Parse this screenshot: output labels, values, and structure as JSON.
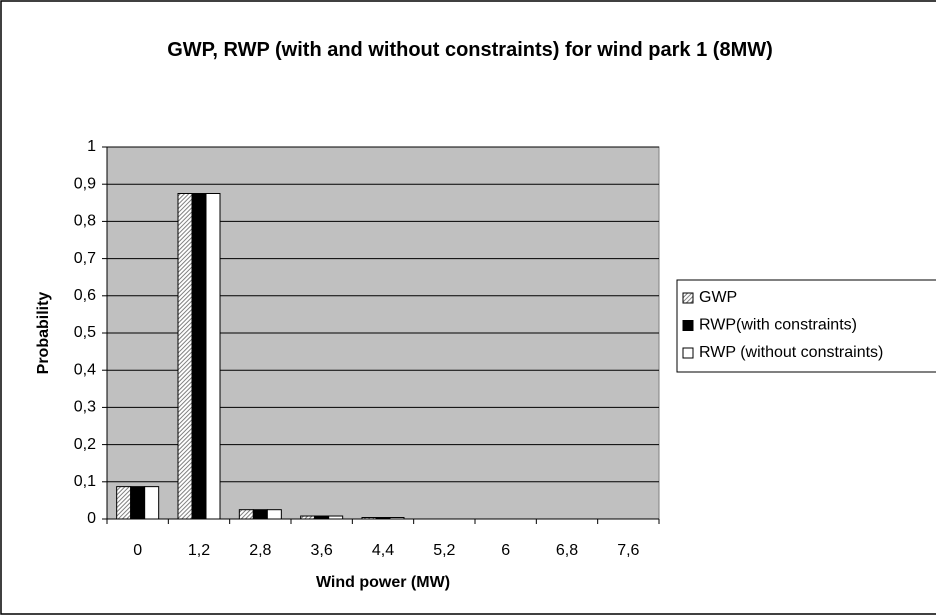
{
  "chart_data": {
    "type": "bar",
    "title": "GWP, RWP (with and without constraints) for wind park 1 (8MW)",
    "x_label": "Wind power (MW)",
    "y_label": "Probability",
    "categories": [
      "0",
      "1,2",
      "2,8",
      "3,6",
      "4,4",
      "5,2",
      "6",
      "6,8",
      "7,6"
    ],
    "series": [
      {
        "name": "GWP",
        "color": "#808080",
        "pattern": "hatched",
        "values": [
          0.087,
          0.875,
          0.025,
          0.008,
          0.004,
          0,
          0,
          0,
          0
        ]
      },
      {
        "name": "RWP(with constraints)",
        "color": "#000000",
        "values": [
          0.087,
          0.875,
          0.025,
          0.008,
          0.004,
          0,
          0,
          0,
          0
        ]
      },
      {
        "name": "RWP (without constraints)",
        "color": "#ffffff",
        "values": [
          0.087,
          0.875,
          0.025,
          0.008,
          0.004,
          0,
          0,
          0,
          0
        ]
      }
    ],
    "ylim": [
      0,
      1
    ],
    "yticks": [
      0,
      {
        "value": 0.1,
        "label": "0,1"
      },
      {
        "value": 0.2,
        "label": "0,2"
      },
      {
        "value": 0.3,
        "label": "0,3"
      },
      {
        "value": 0.4,
        "label": "0,4"
      },
      {
        "value": 0.5,
        "label": "0,5"
      },
      {
        "value": 0.6,
        "label": "0,6"
      },
      {
        "value": 0.7,
        "label": "0,7"
      },
      {
        "value": 0.8,
        "label": "0,8"
      },
      {
        "value": 0.9,
        "label": "0,9"
      },
      1
    ],
    "grid": true,
    "plot_background": "#c0c0c0",
    "legend": "right"
  }
}
